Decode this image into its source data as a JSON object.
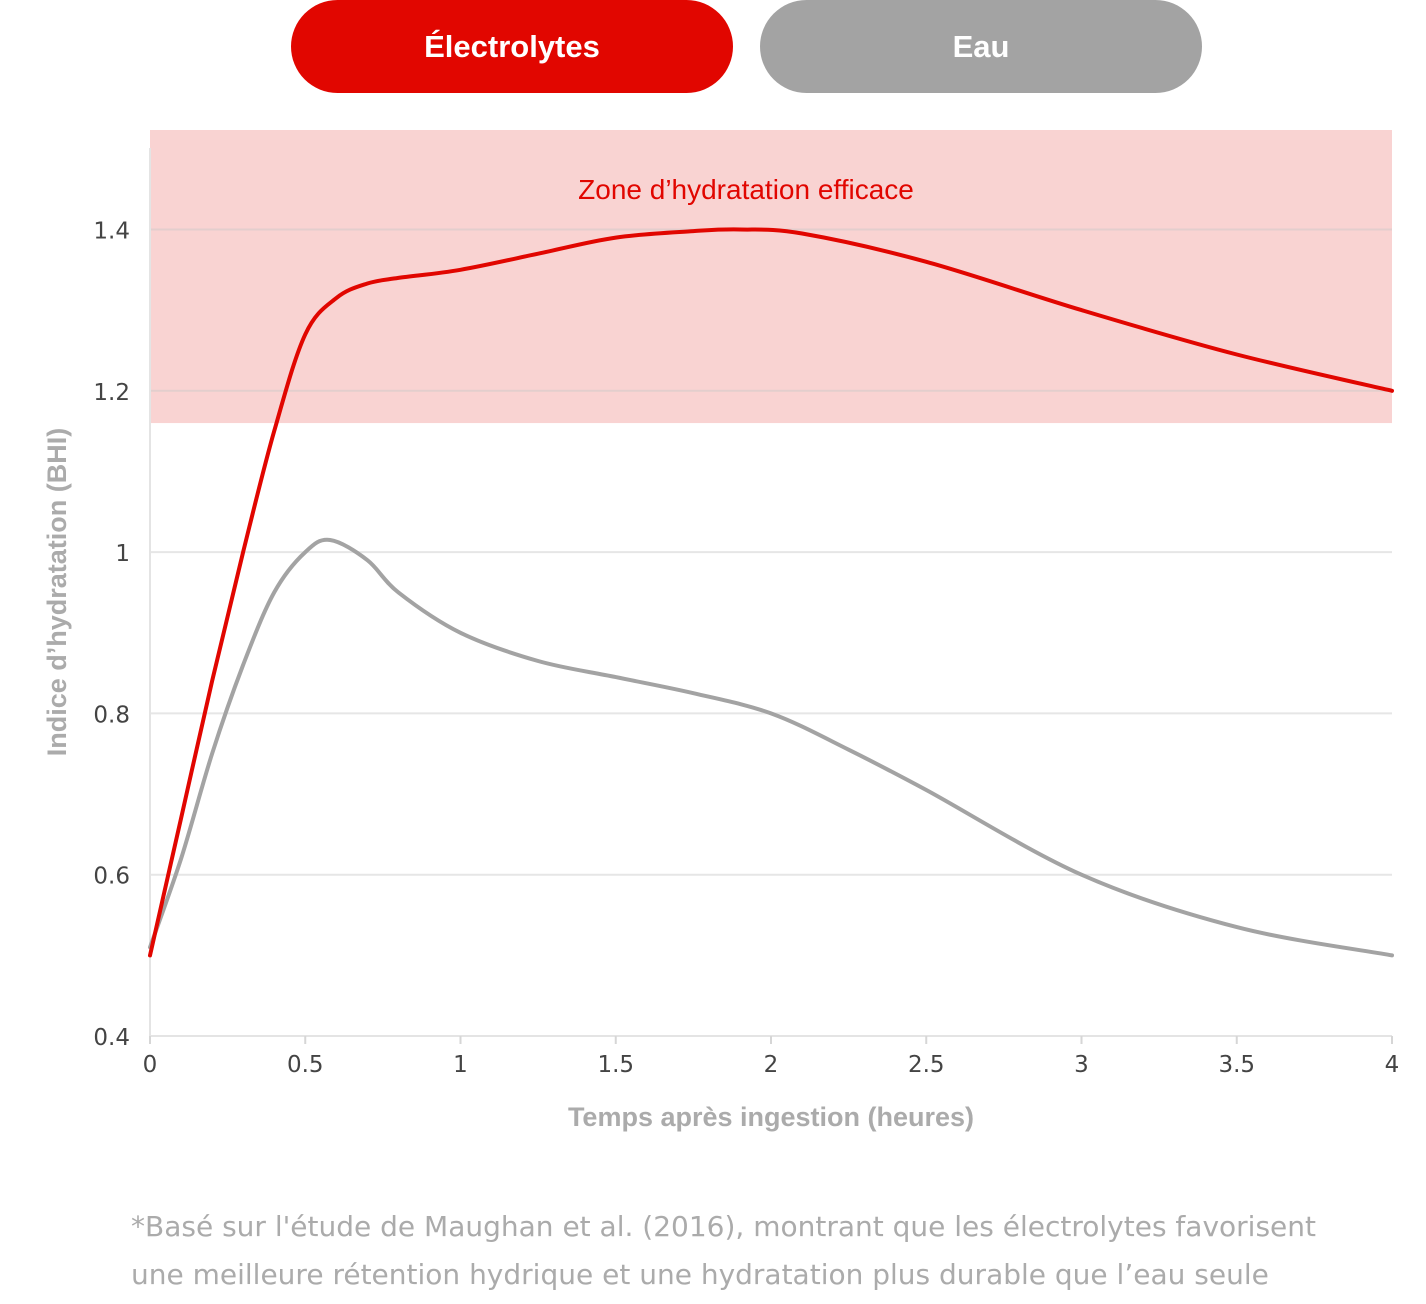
{
  "toggles": {
    "electrolytes_label": "Électrolytes",
    "water_label": "Eau",
    "active": "electrolytes",
    "active_color": "#e10600",
    "inactive_color": "#a3a3a3"
  },
  "chart_data": {
    "type": "line",
    "xlabel": "Temps après ingestion (heures)",
    "ylabel": "Indice d’hydratation (BHI)",
    "xlim": [
      0,
      4
    ],
    "ylim": [
      0.4,
      1.52
    ],
    "x_ticks": [
      0,
      0.5,
      1,
      1.5,
      2,
      2.5,
      3,
      3.5,
      4
    ],
    "x_tick_labels": [
      "0",
      "0.5",
      "1",
      "1.5",
      "2",
      "2.5",
      "3",
      "3.5",
      "4"
    ],
    "y_ticks": [
      0.4,
      0.6,
      0.8,
      1.0,
      1.2,
      1.4
    ],
    "y_tick_labels": [
      "0.4",
      "0.6",
      "0.8",
      "1",
      "1.2",
      "1.4"
    ],
    "grid": "horizontal",
    "zone": {
      "label": "Zone d’hydratation efficace",
      "y_from": 1.16,
      "y_to": 1.52,
      "fill_color": "#f9d3d2",
      "label_color": "#e10600"
    },
    "series": [
      {
        "name": "Électrolytes",
        "color": "#e10600",
        "x": [
          0,
          0.1,
          0.2,
          0.3,
          0.4,
          0.5,
          0.6,
          0.7,
          0.8,
          1.0,
          1.25,
          1.5,
          1.75,
          1.9,
          2.1,
          2.5,
          3.0,
          3.5,
          4.0
        ],
        "y": [
          0.5,
          0.67,
          0.84,
          1.0,
          1.15,
          1.27,
          1.315,
          1.333,
          1.34,
          1.35,
          1.37,
          1.39,
          1.398,
          1.4,
          1.395,
          1.36,
          1.3,
          1.245,
          1.2
        ]
      },
      {
        "name": "Eau",
        "color": "#a3a3a3",
        "x": [
          0,
          0.1,
          0.2,
          0.3,
          0.4,
          0.5,
          0.58,
          0.7,
          0.8,
          1.0,
          1.25,
          1.5,
          1.75,
          2.0,
          2.25,
          2.5,
          3.0,
          3.5,
          4.0
        ],
        "y": [
          0.51,
          0.62,
          0.75,
          0.86,
          0.95,
          1.0,
          1.015,
          0.99,
          0.95,
          0.9,
          0.865,
          0.845,
          0.825,
          0.8,
          0.755,
          0.705,
          0.6,
          0.535,
          0.5
        ]
      }
    ]
  },
  "footnote": {
    "line1": "*Basé sur l'étude de Maughan et al. (2016), montrant que les électrolytes favorisent",
    "line2": "une meilleure rétention hydrique et une hydratation plus durable que l’eau seule"
  }
}
